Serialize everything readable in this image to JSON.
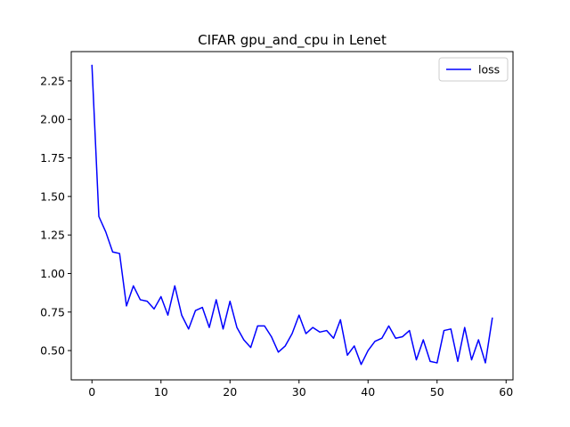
{
  "chart_data": {
    "type": "line",
    "title": "CIFAR gpu_and_cpu in Lenet",
    "xlabel": "",
    "ylabel": "",
    "xlim": [
      -3,
      61
    ],
    "ylim": [
      0.31,
      2.44
    ],
    "x_ticks": [
      0,
      10,
      20,
      30,
      40,
      50,
      60
    ],
    "y_ticks": [
      0.5,
      0.75,
      1.0,
      1.25,
      1.5,
      1.75,
      2.0,
      2.25
    ],
    "x_tick_labels": [
      "0",
      "10",
      "20",
      "30",
      "40",
      "50",
      "60"
    ],
    "y_tick_labels": [
      "0.50",
      "0.75",
      "1.00",
      "1.25",
      "1.50",
      "1.75",
      "2.00",
      "2.25"
    ],
    "grid": false,
    "legend": {
      "position": "top-right",
      "entries": [
        "loss"
      ]
    },
    "series": [
      {
        "name": "loss",
        "color": "#0000ff",
        "x": [
          0,
          1,
          2,
          3,
          4,
          5,
          6,
          7,
          8,
          9,
          10,
          11,
          12,
          13,
          14,
          15,
          16,
          17,
          18,
          19,
          20,
          21,
          22,
          23,
          24,
          25,
          26,
          27,
          28,
          29,
          30,
          31,
          32,
          33,
          34,
          35,
          36,
          37,
          38,
          39,
          40,
          41,
          42,
          43,
          44,
          45,
          46,
          47,
          48,
          49,
          50,
          51,
          52,
          53,
          54,
          55,
          56,
          57,
          58
        ],
        "values": [
          2.35,
          1.37,
          1.27,
          1.14,
          1.13,
          0.79,
          0.92,
          0.83,
          0.82,
          0.77,
          0.85,
          0.73,
          0.92,
          0.73,
          0.64,
          0.76,
          0.78,
          0.65,
          0.83,
          0.64,
          0.82,
          0.65,
          0.57,
          0.52,
          0.66,
          0.66,
          0.59,
          0.49,
          0.53,
          0.61,
          0.73,
          0.61,
          0.65,
          0.62,
          0.63,
          0.58,
          0.7,
          0.47,
          0.53,
          0.41,
          0.5,
          0.56,
          0.58,
          0.66,
          0.58,
          0.59,
          0.63,
          0.44,
          0.57,
          0.43,
          0.42,
          0.63,
          0.64,
          0.43,
          0.65,
          0.44,
          0.57,
          0.42,
          0.71
        ]
      }
    ]
  }
}
